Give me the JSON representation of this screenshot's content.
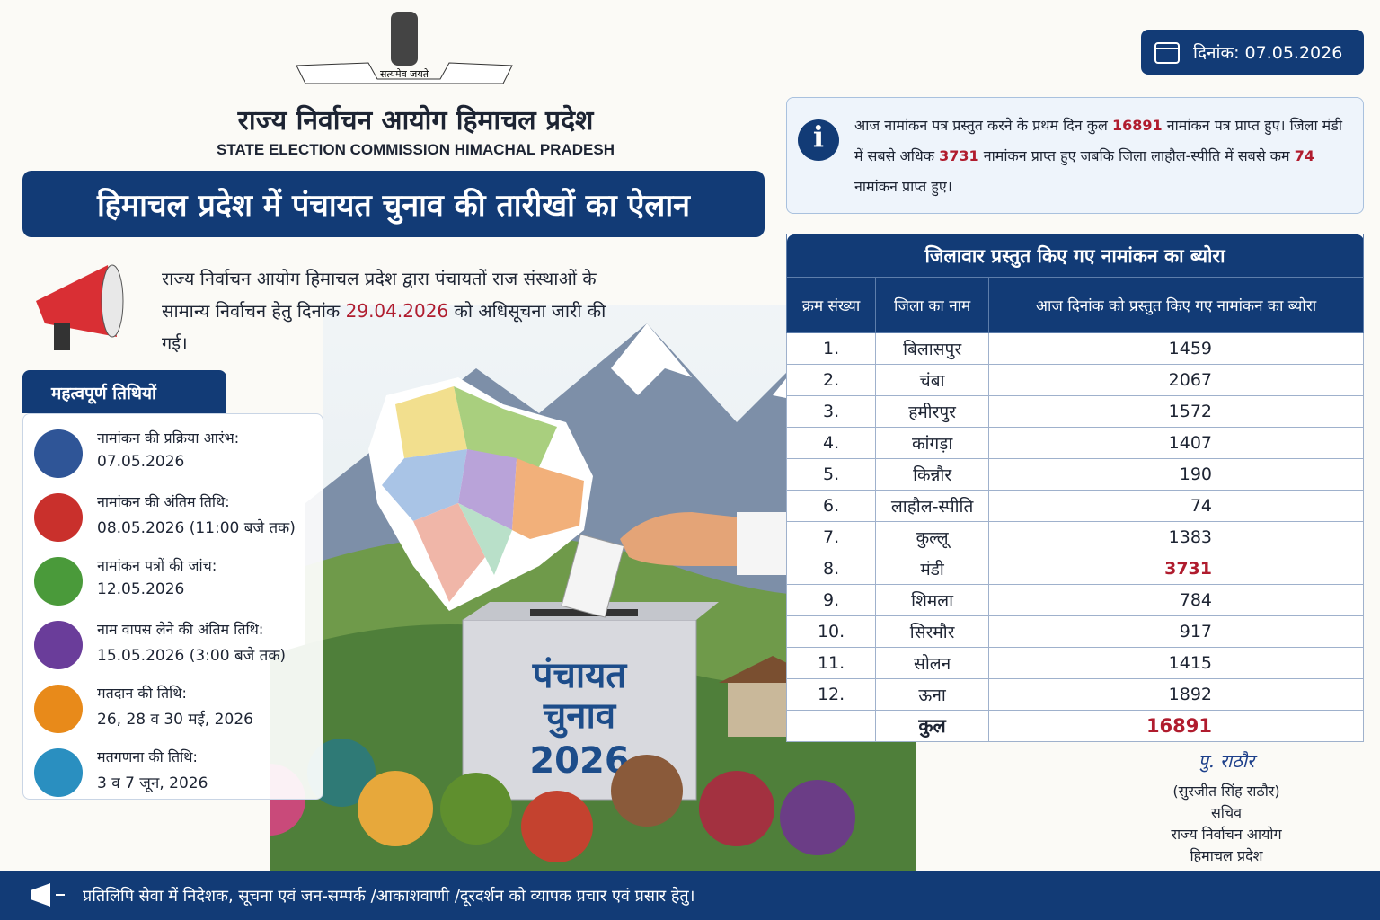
{
  "header": {
    "emblem_motto": "सत्यमेव जयते",
    "title_hi": "राज्य निर्वाचन आयोग हिमाचल प्रदेश",
    "title_en": "STATE ELECTION COMMISSION HIMACHAL PRADESH",
    "date": "दिनांक: 07.05.2026"
  },
  "banner": "हिमाचल प्रदेश में पंचायत चुनाव की तारीखों का ऐलान",
  "notice": {
    "text_before": "राज्य निर्वाचन आयोग हिमाचल प्रदेश द्वारा पंचायतों राज संस्थाओं के सामान्य निर्वाचन हेतु दिनांक",
    "date": "29.04.2026",
    "text_after": "को अधिसूचना जारी की गई।"
  },
  "dates": {
    "title": "महत्वपूर्ण तिथियों",
    "items": [
      {
        "label": "नामांकन की प्रक्रिया आरंभ:",
        "value": "07.05.2026"
      },
      {
        "label": "नामांकन की अंतिम तिथि:",
        "value": "08.05.2026 (11:00 बजे तक)"
      },
      {
        "label": "नामांकन पत्रों की जांच:",
        "value": "12.05.2026"
      },
      {
        "label": "नाम वापस लेने की अंतिम तिथि:",
        "value": "15.05.2026 (3:00 बजे तक)"
      },
      {
        "label": "मतदान की तिथि:",
        "value": "26, 28 व 30 मई, 2026"
      },
      {
        "label": "मतगणना की तिथि:",
        "value": "3 व 7 जून, 2026"
      }
    ]
  },
  "ballot_box": {
    "line1": "पंचायत",
    "line2": "चुनाव",
    "line3": "2026"
  },
  "info": {
    "segments": [
      "आज नामांकन पत्र प्रस्तुत करने के प्रथम दिन कुल",
      "16891",
      "नामांकन पत्र प्राप्त हुए। जिला मंडी में सबसे अधिक",
      "3731",
      "नामांकन प्राप्त हुए जबकि जिला लाहौल-स्पीति में सबसे कम",
      "74",
      "नामांकन प्राप्त हुए।"
    ]
  },
  "table": {
    "title": "जिलावार प्रस्तुत किए गए नामांकन का ब्योरा",
    "headers": [
      "क्रम संख्या",
      "जिला का नाम",
      "आज दिनांक को प्रस्तुत किए गए नामांकन का ब्योरा"
    ],
    "rows": [
      [
        "1.",
        "बिलासपुर",
        "1459"
      ],
      [
        "2.",
        "चंबा",
        "2067"
      ],
      [
        "3.",
        "हमीरपुर",
        "1572"
      ],
      [
        "4.",
        "कांगड़ा",
        "1407"
      ],
      [
        "5.",
        "किन्नौर",
        "190"
      ],
      [
        "6.",
        "लाहौल-स्पीति",
        "74"
      ],
      [
        "7.",
        "कुल्लू",
        "1383"
      ],
      [
        "8.",
        "मंडी",
        "3731"
      ],
      [
        "9.",
        "शिमला",
        "784"
      ],
      [
        "10.",
        "सिरमौर",
        "917"
      ],
      [
        "11.",
        "सोलन",
        "1415"
      ],
      [
        "12.",
        "ऊना",
        "1892"
      ]
    ],
    "total_label": "कुल",
    "total": "16891"
  },
  "signature": {
    "sign": "पु. राठौर",
    "name": "(सुरजीत सिंह राठौर)",
    "designation": "सचिव",
    "org_line1": "राज्य निर्वाचन आयोग",
    "org_line2": "हिमाचल प्रदेश"
  },
  "footer": "प्रतिलिपि सेवा में निदेशक, सूचना एवं जन-सम्पर्क /आकाशवाणी /दूरदर्शन को व्यापक प्रचार एवं प्रसार हेतु।"
}
